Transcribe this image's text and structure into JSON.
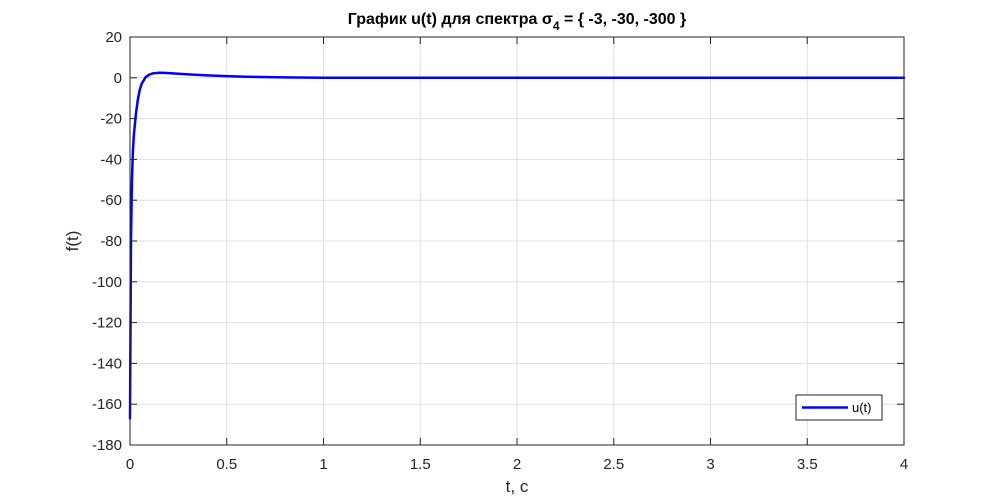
{
  "chart_data": {
    "type": "line",
    "title": {
      "main": "График u(t) для спектра σ",
      "subscript": "4",
      "rest": " = { -3, -30, -300 }"
    },
    "xlabel": "t, c",
    "ylabel": "f(t)",
    "xlim": [
      0,
      4
    ],
    "ylim": [
      -180,
      20
    ],
    "xticks": [
      0,
      0.5,
      1,
      1.5,
      2,
      2.5,
      3,
      3.5,
      4
    ],
    "xtick_labels": [
      "0",
      "0.5",
      "1",
      "1.5",
      "2",
      "2.5",
      "3",
      "3.5",
      "4"
    ],
    "yticks": [
      20,
      0,
      -20,
      -40,
      -60,
      -80,
      -100,
      -120,
      -140,
      -160,
      -180
    ],
    "ytick_labels": [
      "20",
      "0",
      "-20",
      "-40",
      "-60",
      "-80",
      "-100",
      "-120",
      "-140",
      "-160",
      "-180"
    ],
    "grid": true,
    "legend_location": "bottom-right",
    "series": [
      {
        "name": "u(t)",
        "color": "#0000ff",
        "x": [
          0,
          0.005,
          0.01,
          0.015,
          0.02,
          0.03,
          0.04,
          0.05,
          0.06,
          0.08,
          0.1,
          0.12,
          0.15,
          0.18,
          0.2,
          0.25,
          0.3,
          0.4,
          0.5,
          0.6,
          0.8,
          1,
          1.2,
          1.5,
          2,
          2.5,
          3,
          3.5,
          4
        ],
        "y": [
          -167,
          -80,
          -50,
          -36,
          -28,
          -18,
          -11,
          -6,
          -3,
          0.2,
          1.6,
          2.2,
          2.5,
          2.4,
          2.3,
          2.0,
          1.7,
          1.2,
          0.8,
          0.5,
          0.2,
          0.05,
          0.02,
          0.0,
          0.0,
          0.0,
          0.0,
          0.0,
          0.0
        ]
      }
    ]
  }
}
